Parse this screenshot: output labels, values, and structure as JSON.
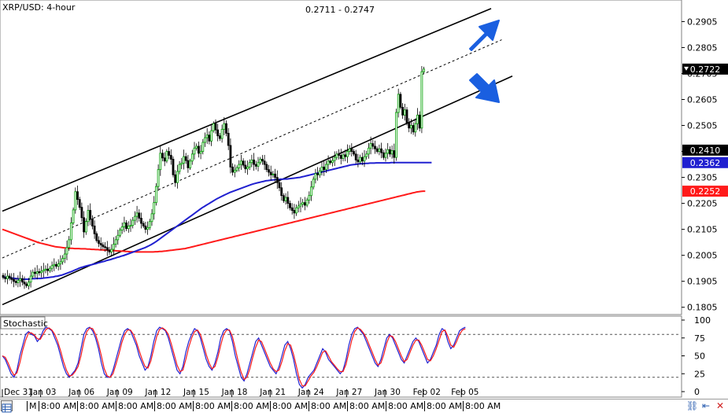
{
  "chart_data": [
    {
      "type": "candlestick",
      "title": "XRP/USD: 4-hour",
      "price_range_label": "0.2711 - 0.2747",
      "ylim": [
        0.178,
        0.2985
      ],
      "y_ticks": [
        0.1805,
        0.1905,
        0.2005,
        0.2105,
        0.2205,
        0.2305,
        0.2405,
        0.2505,
        0.2605,
        0.2705,
        0.2805,
        0.2905
      ],
      "y_tick_labels": [
        "0.1805",
        "0.1905",
        "0.2005",
        "0.2105",
        "0.2205",
        "0.2305",
        "0.2405",
        "0.2505",
        "0.2605",
        "0.2705",
        "0.2805",
        "0.2905"
      ],
      "x_labels": [
        "Dec 31",
        "Jan 03",
        "Jan 06",
        "Jan 09",
        "Jan 12",
        "Jan 15",
        "Jan 18",
        "Jan 21",
        "Jan 24",
        "Jan 27",
        "Jan 30",
        "Feb 02",
        "Feb 05"
      ],
      "x_label_bars": [
        0,
        18,
        36,
        54,
        72,
        90,
        108,
        126,
        144,
        162,
        180,
        198,
        216
      ],
      "closes": [
        0.192,
        0.1915,
        0.1925,
        0.1918,
        0.1912,
        0.1905,
        0.19,
        0.1908,
        0.1915,
        0.1902,
        0.1895,
        0.1888,
        0.1902,
        0.1925,
        0.194,
        0.1935,
        0.1942,
        0.1938,
        0.1944,
        0.1949,
        0.1952,
        0.1946,
        0.1955,
        0.1965,
        0.197,
        0.1963,
        0.1972,
        0.198,
        0.1993,
        0.201,
        0.2035,
        0.2065,
        0.213,
        0.218,
        0.225,
        0.222,
        0.219,
        0.215,
        0.2095,
        0.2135,
        0.2178,
        0.2145,
        0.2118,
        0.2088,
        0.2062,
        0.2051,
        0.2045,
        0.2038,
        0.2035,
        0.2025,
        0.2018,
        0.2028,
        0.2048,
        0.2065,
        0.2082,
        0.2102,
        0.2115,
        0.213,
        0.2108,
        0.2118,
        0.212,
        0.214,
        0.2155,
        0.2168,
        0.2148,
        0.2128,
        0.2118,
        0.2105,
        0.2112,
        0.2135,
        0.2165,
        0.2208,
        0.227,
        0.2335,
        0.2398,
        0.238,
        0.2368,
        0.2405,
        0.239,
        0.2375,
        0.2315,
        0.2285,
        0.2328,
        0.2355,
        0.236,
        0.2385,
        0.237,
        0.2342,
        0.2368,
        0.2395,
        0.2418,
        0.2425,
        0.2398,
        0.2405,
        0.244,
        0.2458,
        0.2468,
        0.2445,
        0.2485,
        0.2512,
        0.2488,
        0.2465,
        0.2455,
        0.249,
        0.2512,
        0.2475,
        0.2428,
        0.2345,
        0.2325,
        0.2333,
        0.2342,
        0.2355,
        0.2368,
        0.2352,
        0.2338,
        0.2345,
        0.2362,
        0.2372,
        0.2355,
        0.2348,
        0.2362,
        0.2375,
        0.2368,
        0.2355,
        0.2335,
        0.2325,
        0.2315,
        0.2318,
        0.2305,
        0.2285,
        0.2265,
        0.2235,
        0.2215,
        0.2228,
        0.2205,
        0.2188,
        0.2178,
        0.2168,
        0.2188,
        0.2195,
        0.2202,
        0.2208,
        0.2198,
        0.2218,
        0.2235,
        0.2268,
        0.2298,
        0.232,
        0.2315,
        0.233,
        0.2345,
        0.2335,
        0.2355,
        0.2368,
        0.2362,
        0.237,
        0.2382,
        0.2395,
        0.239,
        0.2378,
        0.2392,
        0.2385,
        0.2405,
        0.2415,
        0.2405,
        0.2395,
        0.2372,
        0.2365,
        0.2382,
        0.2368,
        0.2385,
        0.2395,
        0.2418,
        0.2435,
        0.2425,
        0.2415,
        0.2405,
        0.2415,
        0.24,
        0.2382,
        0.2398,
        0.2412,
        0.2395,
        0.2408,
        0.2382,
        0.2555,
        0.2625,
        0.2575,
        0.2545,
        0.2565,
        0.2515,
        0.2495,
        0.2505,
        0.248,
        0.2512,
        0.2545,
        0.2495,
        0.2712,
        0.2722
      ],
      "ma_100": [
        0.1922,
        0.1921,
        0.192,
        0.1919,
        0.1918,
        0.1917,
        0.1916,
        0.1915,
        0.1914,
        0.1914,
        0.1913,
        0.1913,
        0.1913,
        0.1914,
        0.1915,
        0.1915,
        0.1916,
        0.1916,
        0.1916,
        0.1917,
        0.1918,
        0.1919,
        0.192,
        0.1921,
        0.1922,
        0.1924,
        0.1925,
        0.1927,
        0.1929,
        0.1932,
        0.1935,
        0.1938,
        0.1941,
        0.1944,
        0.1948,
        0.1951,
        0.1955,
        0.1958,
        0.196,
        0.1963,
        0.1965,
        0.1967,
        0.1969,
        0.1971,
        0.1973,
        0.1976,
        0.1978,
        0.198,
        0.1982,
        0.1985,
        0.1987,
        0.1989,
        0.1992,
        0.1994,
        0.1997,
        0.1999,
        0.2002,
        0.2004,
        0.2007,
        0.201,
        0.2013,
        0.2016,
        0.2019,
        0.2022,
        0.2025,
        0.2028,
        0.2031,
        0.2034,
        0.2038,
        0.2042,
        0.2046,
        0.2051,
        0.2056,
        0.2062,
        0.2068,
        0.2074,
        0.208,
        0.2086,
        0.2092,
        0.2098,
        0.2104,
        0.211,
        0.2116,
        0.2122,
        0.2128,
        0.2134,
        0.214,
        0.2146,
        0.2152,
        0.2158,
        0.2164,
        0.217,
        0.2176,
        0.2182,
        0.2188,
        0.2193,
        0.2198,
        0.2203,
        0.2208,
        0.2213,
        0.2218,
        0.2223,
        0.2227,
        0.2231,
        0.2235,
        0.2239,
        0.2243,
        0.2247,
        0.225,
        0.2253,
        0.2256,
        0.2259,
        0.2262,
        0.2265,
        0.2268,
        0.2271,
        0.2274,
        0.2277,
        0.228,
        0.2282,
        0.2284,
        0.2286,
        0.2288,
        0.229,
        0.2292,
        0.2293,
        0.2294,
        0.2295,
        0.2296,
        0.2297,
        0.2297,
        0.2298,
        0.2298,
        0.2299,
        0.2299,
        0.23,
        0.2301,
        0.2302,
        0.2303,
        0.2304,
        0.2305,
        0.2307,
        0.2309,
        0.2311,
        0.2313,
        0.2315,
        0.2317,
        0.2319,
        0.2321,
        0.2323,
        0.2325,
        0.2327,
        0.2329,
        0.2331,
        0.2333,
        0.2335,
        0.2337,
        0.2339,
        0.2341,
        0.2343,
        0.2345,
        0.2347,
        0.2349,
        0.2351,
        0.2353,
        0.2354,
        0.2355,
        0.2356,
        0.2357,
        0.2358,
        0.2358,
        0.2359,
        0.2359,
        0.236,
        0.236,
        0.236,
        0.2361,
        0.2361,
        0.2361,
        0.2361,
        0.2361,
        0.2361,
        0.2361,
        0.2362,
        0.2362,
        0.2362,
        0.2362,
        0.2362,
        0.2362,
        0.2362,
        0.2362,
        0.2362,
        0.2362,
        0.2362,
        0.2362,
        0.2362,
        0.2362,
        0.2362,
        0.2362,
        0.2362,
        0.2362,
        0.2362,
        0.2362
      ],
      "ma_200": [
        0.2105,
        0.2102,
        0.2099,
        0.2096,
        0.2093,
        0.209,
        0.2087,
        0.2084,
        0.2081,
        0.2078,
        0.2075,
        0.2072,
        0.2069,
        0.2066,
        0.2063,
        0.206,
        0.2057,
        0.2054,
        0.2052,
        0.205,
        0.2048,
        0.2046,
        0.2044,
        0.2042,
        0.204,
        0.2038,
        0.2037,
        0.2036,
        0.2035,
        0.2034,
        0.2033,
        0.2032,
        0.2032,
        0.2032,
        0.2031,
        0.2031,
        0.2031,
        0.203,
        0.203,
        0.203,
        0.2029,
        0.2029,
        0.2028,
        0.2028,
        0.2027,
        0.2027,
        0.2026,
        0.2026,
        0.2025,
        0.2025,
        0.2024,
        0.2024,
        0.2023,
        0.2023,
        0.2022,
        0.2022,
        0.2021,
        0.2021,
        0.202,
        0.202,
        0.2019,
        0.2019,
        0.2019,
        0.2018,
        0.2018,
        0.2018,
        0.2018,
        0.2018,
        0.2018,
        0.2018,
        0.2018,
        0.2018,
        0.2019,
        0.2019,
        0.202,
        0.202,
        0.2021,
        0.2022,
        0.2023,
        0.2024,
        0.2025,
        0.2026,
        0.2027,
        0.2028,
        0.2029,
        0.203,
        0.2031,
        0.2033,
        0.2035,
        0.2037,
        0.2039,
        0.2041,
        0.2043,
        0.2045,
        0.2047,
        0.2049,
        0.2051,
        0.2053,
        0.2055,
        0.2057,
        0.2059,
        0.2061,
        0.2063,
        0.2065,
        0.2067,
        0.2069,
        0.2071,
        0.2073,
        0.2075,
        0.2077,
        0.2079,
        0.2081,
        0.2083,
        0.2085,
        0.2087,
        0.2089,
        0.2091,
        0.2093,
        0.2095,
        0.2097,
        0.2099,
        0.2101,
        0.2103,
        0.2105,
        0.2107,
        0.2109,
        0.2111,
        0.2113,
        0.2115,
        0.2117,
        0.2119,
        0.2121,
        0.2123,
        0.2125,
        0.2127,
        0.2129,
        0.2131,
        0.2133,
        0.2135,
        0.2137,
        0.2139,
        0.2141,
        0.2143,
        0.2145,
        0.2147,
        0.2149,
        0.2151,
        0.2153,
        0.2155,
        0.2157,
        0.2159,
        0.2161,
        0.2163,
        0.2165,
        0.2167,
        0.2169,
        0.2171,
        0.2173,
        0.2175,
        0.2177,
        0.2179,
        0.2181,
        0.2183,
        0.2185,
        0.2187,
        0.2189,
        0.2191,
        0.2193,
        0.2195,
        0.2197,
        0.2199,
        0.2201,
        0.2203,
        0.2205,
        0.2207,
        0.2209,
        0.2211,
        0.2213,
        0.2215,
        0.2217,
        0.2219,
        0.2221,
        0.2223,
        0.2225,
        0.2227,
        0.2229,
        0.2231,
        0.2233,
        0.2235,
        0.2237,
        0.2239,
        0.2241,
        0.2243,
        0.2245,
        0.2247,
        0.2249,
        0.225,
        0.2251,
        0.2252,
        0.2252
      ],
      "channel_upper": [
        [
          0,
          0.2175
        ],
        [
          230,
          0.2955
        ]
      ],
      "channel_mid": [
        [
          0,
          0.1995
        ],
        [
          235,
          0.2835
        ]
      ],
      "channel_lower": [
        [
          0,
          0.1815
        ],
        [
          240,
          0.2695
        ]
      ],
      "price_labels": [
        {
          "value": 0.2722,
          "label": "0.2722",
          "color": "#000000"
        },
        {
          "value": 0.241,
          "label": "0.2410",
          "color": "#000000"
        },
        {
          "value": 0.2362,
          "label": "0.2362",
          "color": "#2020d0"
        },
        {
          "value": 0.2252,
          "label": "0.2252",
          "color": "#ff1a1a"
        }
      ],
      "arrows": [
        {
          "direction": "up-right",
          "color": "#1a5fe0"
        },
        {
          "direction": "down-right",
          "color": "#1a5fe0"
        }
      ],
      "candle_up_color": "#00a000",
      "candle_down_color": "#000000",
      "ma_100_color": "#2020d0",
      "ma_200_color": "#ff1a1a"
    },
    {
      "type": "line",
      "title": "Stochastic",
      "ylim": [
        0,
        100
      ],
      "y_ticks": [
        0,
        25,
        50,
        75,
        100
      ],
      "y_tick_labels": [
        "0",
        "25",
        "50",
        "75",
        "100"
      ],
      "levels": [
        80,
        20
      ],
      "series": [
        {
          "color": "#2020d0",
          "values": [
            50,
            45,
            35,
            25,
            20,
            30,
            50,
            65,
            80,
            84,
            80,
            78,
            70,
            75,
            85,
            90,
            88,
            85,
            75,
            65,
            50,
            35,
            25,
            20,
            25,
            30,
            40,
            60,
            80,
            88,
            90,
            85,
            75,
            60,
            40,
            25,
            20,
            20,
            30,
            45,
            60,
            75,
            85,
            88,
            85,
            75,
            65,
            50,
            40,
            30,
            35,
            50,
            70,
            85,
            90,
            88,
            85,
            75,
            60,
            45,
            30,
            25,
            35,
            55,
            70,
            80,
            88,
            85,
            75,
            60,
            45,
            35,
            30,
            40,
            55,
            75,
            85,
            88,
            85,
            70,
            50,
            35,
            20,
            15,
            25,
            40,
            55,
            70,
            75,
            65,
            55,
            45,
            35,
            30,
            25,
            35,
            50,
            65,
            70,
            60,
            45,
            25,
            10,
            5,
            10,
            20,
            25,
            30,
            40,
            50,
            60,
            55,
            45,
            40,
            35,
            30,
            25,
            30,
            45,
            65,
            80,
            88,
            90,
            85,
            80,
            70,
            60,
            50,
            40,
            35,
            45,
            60,
            75,
            80,
            75,
            65,
            55,
            45,
            40,
            50,
            60,
            70,
            75,
            70,
            60,
            50,
            40,
            45,
            55,
            65,
            80,
            88,
            85,
            70,
            60,
            65,
            75,
            85,
            88,
            90
          ]
        },
        {
          "color": "#ff1a1a",
          "values": [
            50,
            48,
            40,
            30,
            23,
            26,
            40,
            58,
            72,
            82,
            82,
            79,
            74,
            73,
            80,
            87,
            89,
            86,
            80,
            70,
            57,
            42,
            30,
            22,
            23,
            28,
            35,
            50,
            70,
            84,
            89,
            88,
            80,
            67,
            50,
            32,
            22,
            20,
            25,
            38,
            52,
            68,
            80,
            86,
            86,
            80,
            70,
            57,
            45,
            35,
            33,
            43,
            60,
            77,
            87,
            89,
            86,
            80,
            67,
            52,
            37,
            28,
            30,
            45,
            62,
            75,
            84,
            86,
            80,
            67,
            52,
            40,
            32,
            35,
            48,
            65,
            80,
            86,
            86,
            77,
            60,
            42,
            27,
            17,
            20,
            32,
            48,
            62,
            72,
            70,
            60,
            50,
            40,
            32,
            28,
            30,
            42,
            57,
            67,
            65,
            52,
            35,
            17,
            8,
            8,
            15,
            22,
            27,
            35,
            45,
            55,
            57,
            50,
            42,
            37,
            32,
            28,
            28,
            38,
            55,
            72,
            84,
            89,
            87,
            82,
            75,
            65,
            55,
            45,
            37,
            40,
            52,
            68,
            78,
            77,
            70,
            60,
            50,
            42,
            45,
            55,
            65,
            72,
            72,
            65,
            55,
            45,
            43,
            50,
            60,
            72,
            84,
            86,
            77,
            65,
            62,
            70,
            80,
            86,
            88
          ]
        }
      ]
    }
  ],
  "time_axis": {
    "cells": [
      "M",
      "8:00 AM",
      "8:00 AM",
      "8:00 AM",
      "8:00 AM",
      "8:00 AM",
      "8:00 AM",
      "8:00 AM",
      "8:00 AM",
      "8:00 AM",
      "8:00 AM",
      "8:00 AM",
      "8:00 AM"
    ],
    "corner_icon": "grid-icon",
    "right_icons": [
      "link-icon",
      "arrow-left-icon",
      "close-icon"
    ]
  },
  "colors": {
    "axis": "#000000",
    "grid_dotted": "#808080",
    "panel_border": "#808080",
    "arrow": "#1a5fe0"
  }
}
